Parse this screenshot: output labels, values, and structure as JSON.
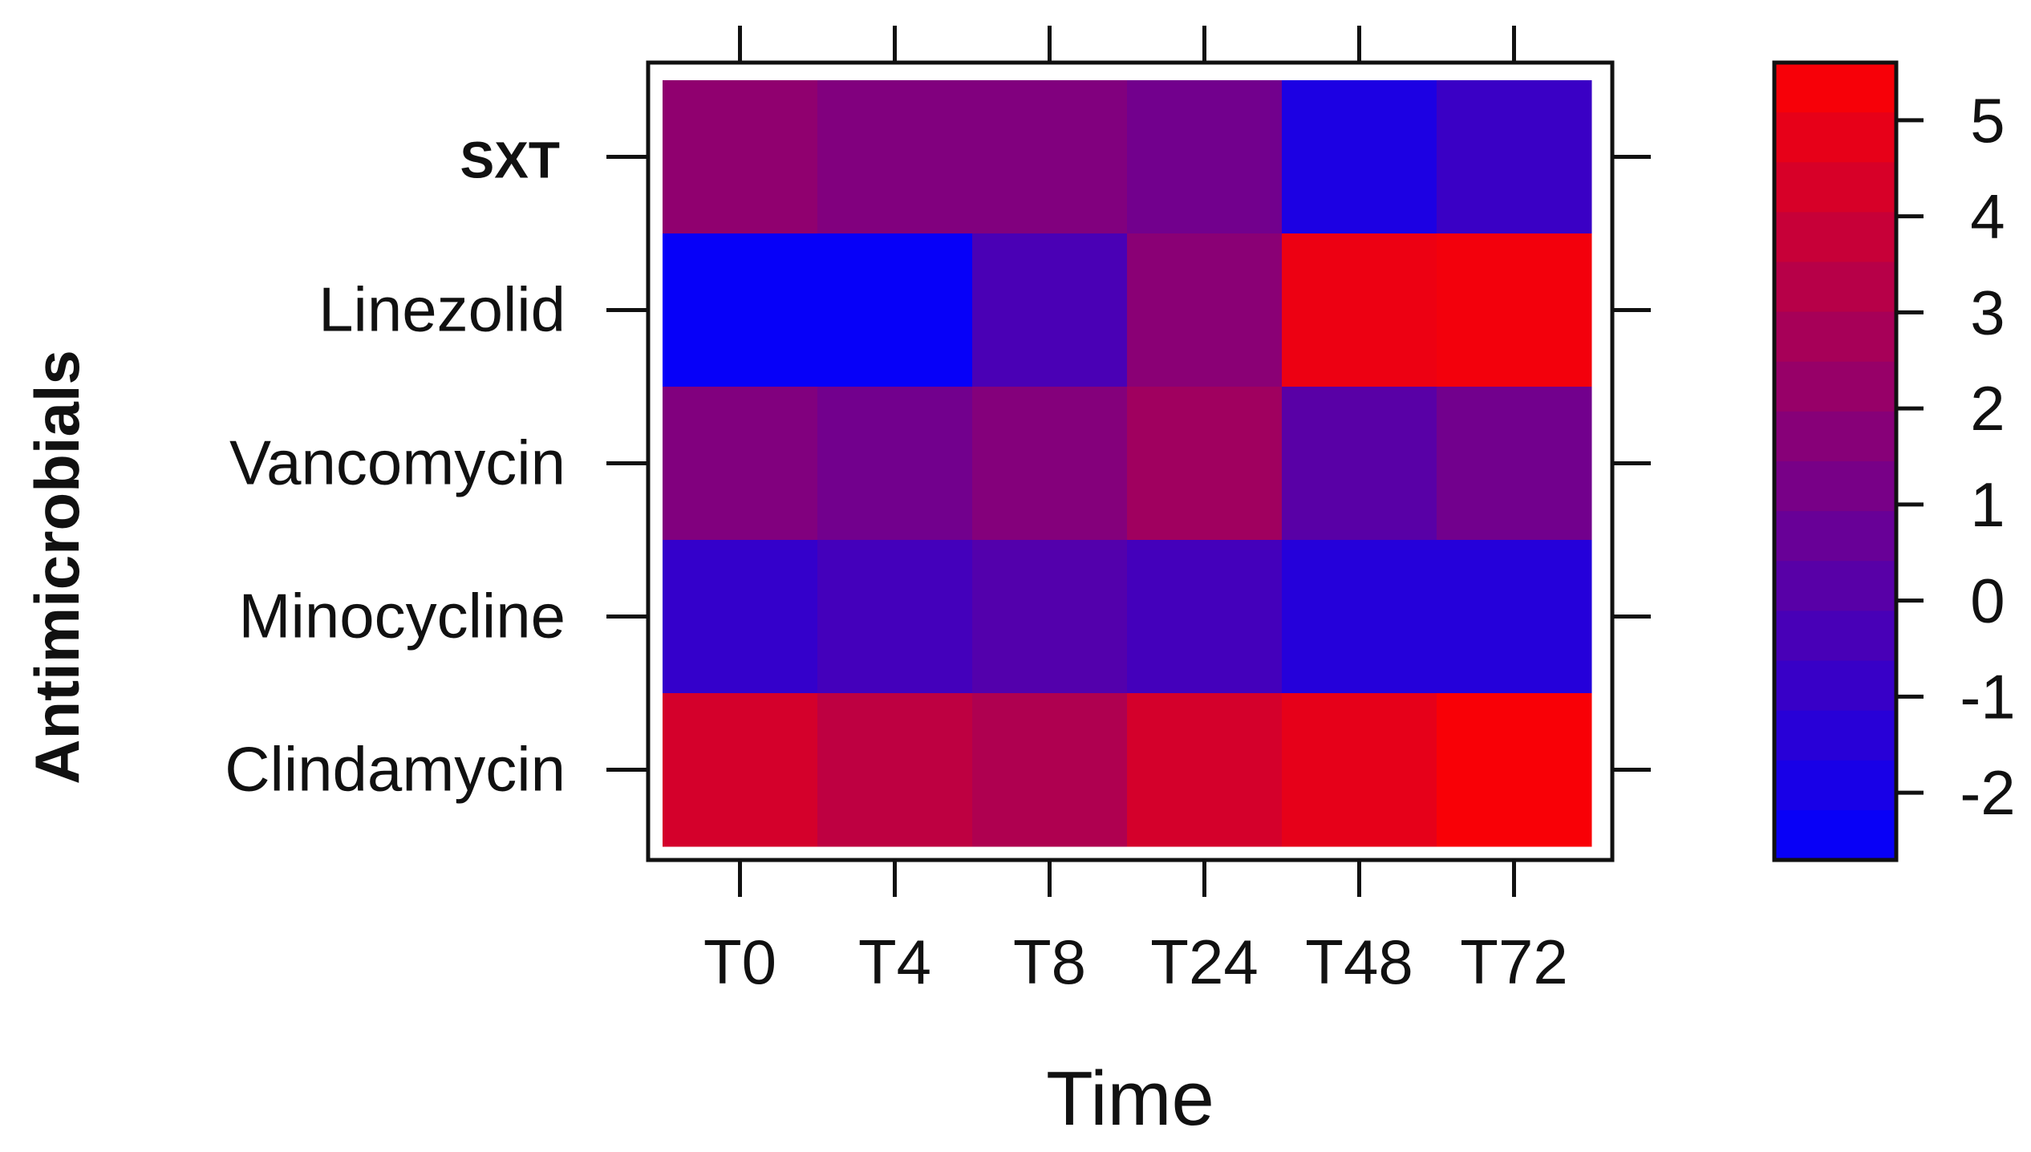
{
  "chart_data": {
    "type": "heatmap",
    "xlabel": "Time",
    "ylabel": "Antimicrobials",
    "x_categories": [
      "T0",
      "T4",
      "T8",
      "T24",
      "T48",
      "T72"
    ],
    "y_categories": [
      "SXT",
      "Linezolid",
      "Vancomycin",
      "Minocycline",
      "Clindamycin"
    ],
    "values": [
      [
        2.0,
        1.5,
        1.5,
        1.0,
        -1.8,
        -0.8
      ],
      [
        -2.5,
        -2.5,
        -0.3,
        1.8,
        5.0,
        5.2
      ],
      [
        1.5,
        1.0,
        1.6,
        2.5,
        0.2,
        1.0
      ],
      [
        -1.0,
        -0.5,
        0.0,
        -0.5,
        -1.5,
        -1.5
      ],
      [
        4.2,
        3.5,
        3.0,
        4.2,
        4.8,
        5.4
      ]
    ],
    "colorbar": {
      "ticks": [
        -2,
        -1,
        0,
        1,
        2,
        3,
        4,
        5
      ],
      "range": [
        -2.7,
        5.6
      ],
      "low_color": "#0000ff",
      "high_color": "#ff0000"
    },
    "grid": false,
    "legend": "right"
  }
}
